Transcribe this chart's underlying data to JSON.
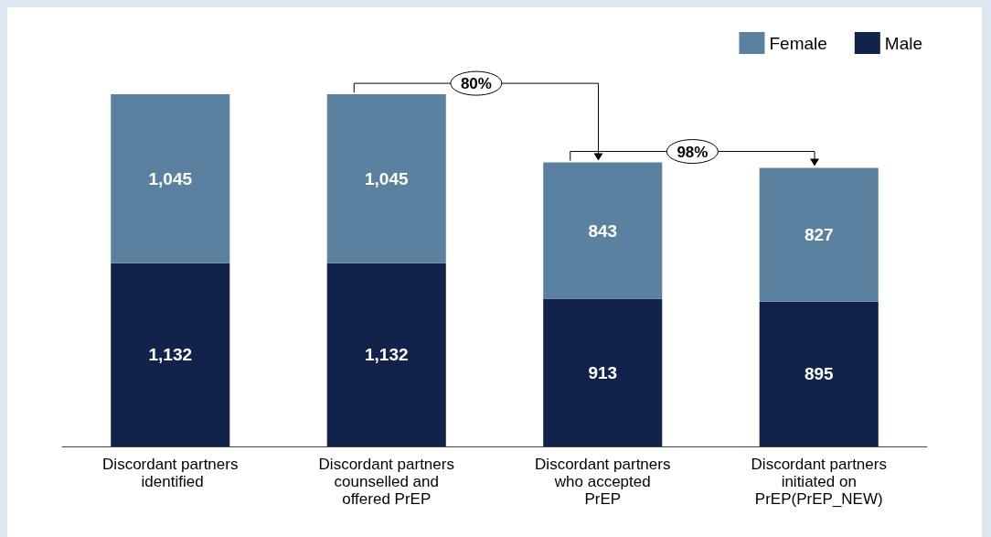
{
  "chart_data": {
    "type": "bar",
    "stacked": true,
    "legend": "top right",
    "categories": [
      "Discordant partners identified",
      "Discordant partners counselled and offered PrEP",
      "Discordant partners who accepted PrEP",
      "Discordant partners initiated on PrEP(PrEP_NEW)"
    ],
    "series": [
      {
        "name": "Male",
        "color": "#12234b",
        "values": [
          1132,
          1132,
          913,
          895
        ],
        "value_labels": [
          "1,132",
          "1,132",
          "913",
          "895"
        ]
      },
      {
        "name": "Female",
        "color": "#5b81a1",
        "values": [
          1045,
          1045,
          843,
          827
        ],
        "value_labels": [
          "1,045",
          "1,045",
          "843",
          "827"
        ]
      }
    ],
    "annotations": [
      "80%",
      "98%"
    ]
  }
}
